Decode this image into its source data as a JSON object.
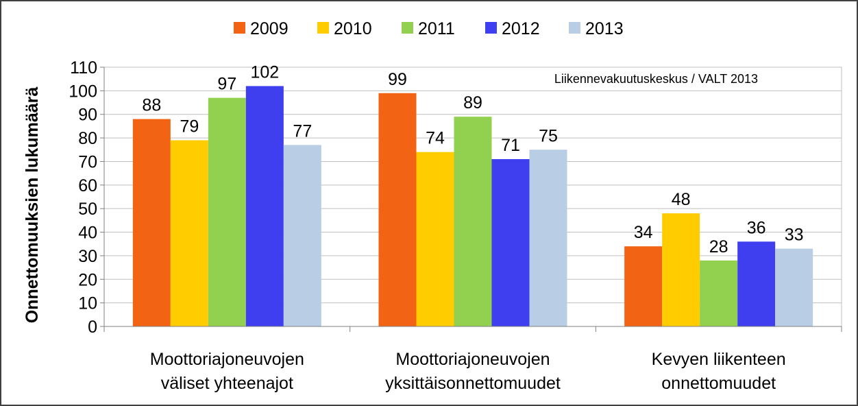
{
  "chart_data": {
    "type": "bar",
    "ylabel": "Onnettomuuksien lukumäärä",
    "annotation": "Liikennevakuutuskeskus / VALT 2013",
    "ylim": [
      0,
      110
    ],
    "yticks": [
      0,
      10,
      20,
      30,
      40,
      50,
      60,
      70,
      80,
      90,
      100,
      110
    ],
    "grid": true,
    "legend_position": "top",
    "categories": [
      [
        "Moottoriajoneuvojen",
        "väliset yhteenajot"
      ],
      [
        "Moottoriajoneuvojen",
        "yksittäisonnettomuudet"
      ],
      [
        "Kevyen liikenteen",
        "onnettomuudet"
      ]
    ],
    "series": [
      {
        "name": "2009",
        "color": "#f26313",
        "values": [
          88,
          99,
          34
        ]
      },
      {
        "name": "2010",
        "color": "#ffcc00",
        "values": [
          79,
          74,
          48
        ]
      },
      {
        "name": "2011",
        "color": "#92d050",
        "values": [
          97,
          89,
          28
        ]
      },
      {
        "name": "2012",
        "color": "#3f3ff0",
        "values": [
          102,
          71,
          36
        ]
      },
      {
        "name": "2013",
        "color": "#b9cde5",
        "values": [
          77,
          75,
          33
        ]
      }
    ]
  }
}
